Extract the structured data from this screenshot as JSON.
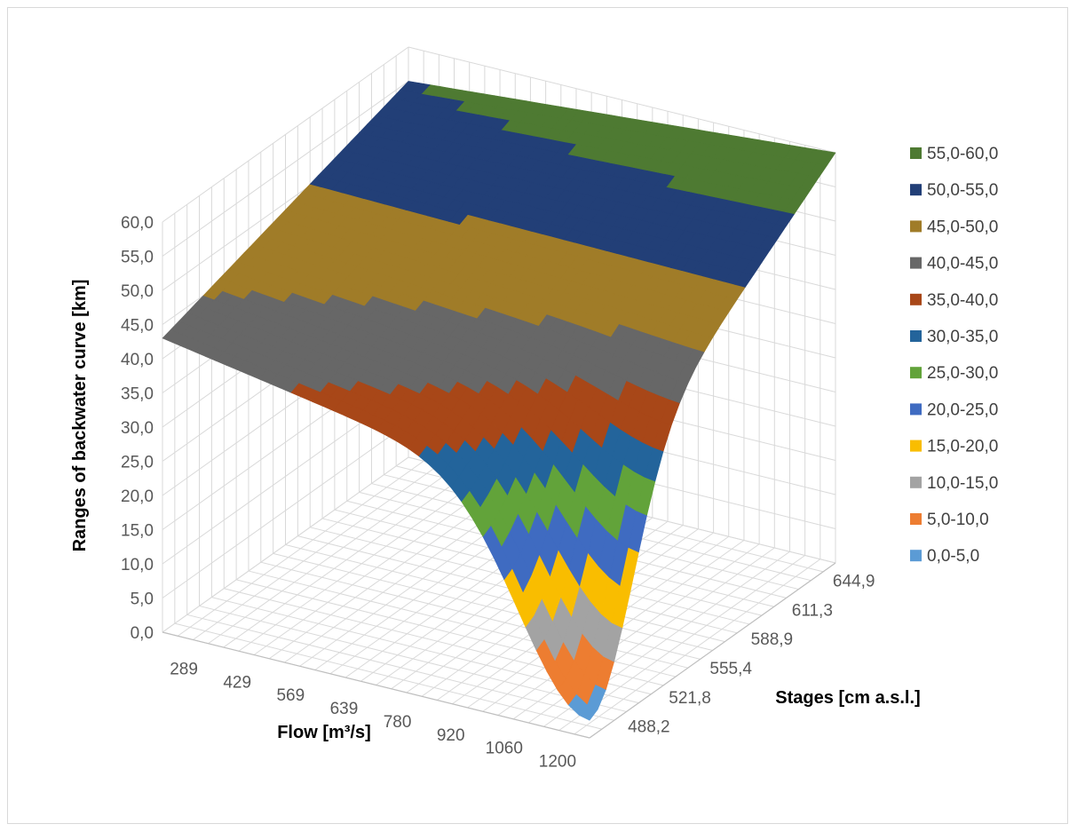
{
  "chart_data": {
    "type": "surface",
    "title": "",
    "xlabel": "Flow [m³/s]",
    "ylabel": "Stages [cm a.s.l.]",
    "zlabel": "Ranges of backwater curve [km]",
    "x_ticks": [
      "289",
      "429",
      "569",
      "639",
      "780",
      "920",
      "1060",
      "1200"
    ],
    "y_ticks": [
      "488,2",
      "521,8",
      "555,4",
      "588,9",
      "611,3",
      "644,9"
    ],
    "z_ticks": [
      "0,0",
      "5,0",
      "10,0",
      "15,0",
      "20,0",
      "25,0",
      "30,0",
      "35,0",
      "40,0",
      "45,0",
      "50,0",
      "55,0",
      "60,0"
    ],
    "zlim": [
      0,
      60
    ],
    "grid": true,
    "legend_position": "right",
    "legend": [
      {
        "label": "55,0-60,0",
        "color": "#4e7a32"
      },
      {
        "label": "50,0-55,0",
        "color": "#223f77"
      },
      {
        "label": "45,0-50,0",
        "color": "#a07c28"
      },
      {
        "label": "40,0-45,0",
        "color": "#676767"
      },
      {
        "label": "35,0-40,0",
        "color": "#a84718"
      },
      {
        "label": "30,0-35,0",
        "color": "#23649b"
      },
      {
        "label": "25,0-30,0",
        "color": "#62a33a"
      },
      {
        "label": "20,0-25,0",
        "color": "#3f6bc1"
      },
      {
        "label": "15,0-20,0",
        "color": "#f9bd00"
      },
      {
        "label": "10,0-15,0",
        "color": "#a3a3a3"
      },
      {
        "label": "5,0-10,0",
        "color": "#ed7d31"
      },
      {
        "label": "0,0-5,0",
        "color": "#5b9bd5"
      }
    ]
  }
}
